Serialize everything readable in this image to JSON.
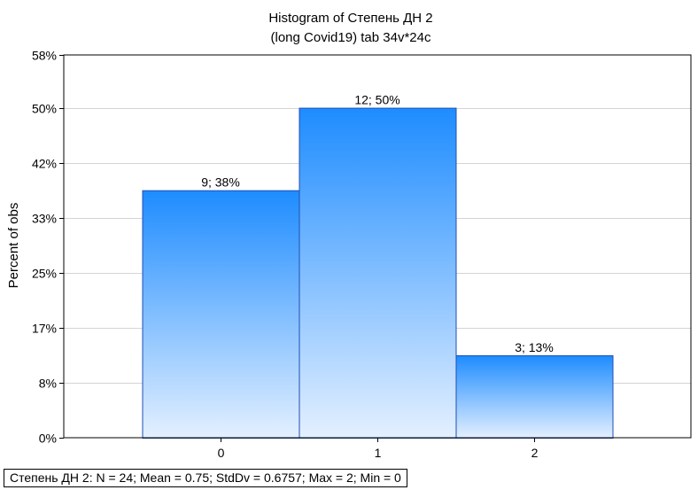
{
  "chart_data": {
    "type": "bar",
    "title": "Histogram of Степень ДН 2",
    "subtitle": "(long Covid19) tab 34v*24c",
    "xlabel": "",
    "ylabel": "Percent of obs",
    "categories": [
      "0",
      "1",
      "2"
    ],
    "values": [
      37.5,
      50,
      12.5
    ],
    "counts": [
      9,
      12,
      3
    ],
    "data_labels": [
      "9; 38%",
      "12; 50%",
      "3; 13%"
    ],
    "ylim": [
      0,
      58
    ],
    "ytick_values": [
      0,
      8.33,
      16.67,
      25,
      33.33,
      41.67,
      50,
      58
    ],
    "ytick_labels": [
      "0%",
      "8%",
      "17%",
      "25%",
      "33%",
      "42%",
      "50%",
      "58%"
    ],
    "xlim": [
      -1,
      3
    ],
    "grid": true,
    "bar_gradient": {
      "top": "#1e8cff",
      "bottom": "#e4f0ff"
    },
    "bar_edge_color": "#1f4fb5"
  },
  "stats_text": "Степень ДН 2:   N = 24; Mean = 0.75; StdDv = 0.6757; Max = 2; Min = 0"
}
